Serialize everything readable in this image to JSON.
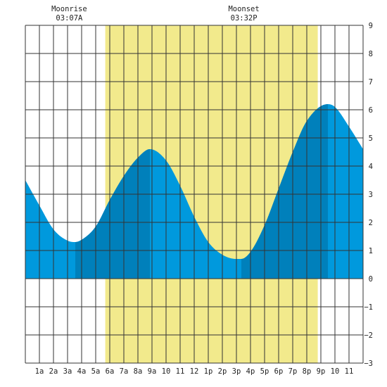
{
  "chart_data": {
    "type": "area",
    "annotations": [
      {
        "label": "Moonrise",
        "time": "03:07A",
        "hour": 3.12
      },
      {
        "label": "Moonset",
        "time": "03:32P",
        "hour": 15.53
      }
    ],
    "x_tick_labels": [
      "1a",
      "2a",
      "3a",
      "4a",
      "5a",
      "6a",
      "7a",
      "8a",
      "9a",
      "10",
      "11",
      "12",
      "1p",
      "2p",
      "3p",
      "4p",
      "5p",
      "6p",
      "7p",
      "8p",
      "9p",
      "10",
      "11"
    ],
    "y_tick_labels": [
      "9",
      "8",
      "7",
      "6",
      "5",
      "4",
      "3",
      "2",
      "1",
      "0",
      "−1",
      "−2",
      "−3"
    ],
    "xlim": [
      0,
      24
    ],
    "ylim": [
      -3,
      9
    ],
    "grid": true,
    "daylight_band": [
      5.68,
      20.78
    ],
    "tide_series": {
      "x": [
        0,
        1,
        2,
        3,
        3.55,
        4,
        5,
        6,
        7,
        8,
        8.85,
        10,
        11,
        12,
        13,
        14,
        15,
        15.35,
        16,
        17,
        18,
        19,
        20,
        21.5,
        22,
        23,
        24
      ],
      "y": [
        3.5,
        2.6,
        1.75,
        1.35,
        1.3,
        1.38,
        1.85,
        2.8,
        3.65,
        4.3,
        4.6,
        4.2,
        3.3,
        2.2,
        1.3,
        0.85,
        0.7,
        0.7,
        0.95,
        1.9,
        3.2,
        4.5,
        5.6,
        6.2,
        6.1,
        5.4,
        4.6
      ]
    },
    "tide_highlight_ranges": [
      [
        3.55,
        8.85
      ],
      [
        15.35,
        21.5
      ]
    ],
    "colors": {
      "tide": "#0099dd",
      "tide_highlight": "#0080bb",
      "daylight": "#f2ea8c",
      "grid": "#333333",
      "background": "#ffffff"
    }
  }
}
